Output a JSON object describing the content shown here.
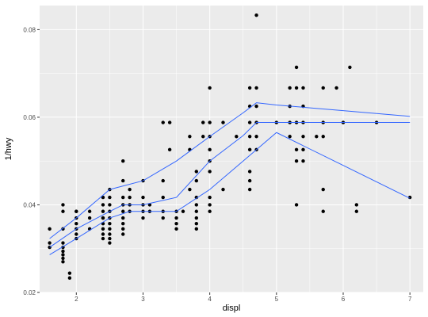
{
  "chart_data": {
    "type": "scatter",
    "title": "",
    "xlabel": "displ",
    "ylabel": "1/hwy",
    "xlim": [
      1.45,
      7.2
    ],
    "ylim": [
      0.02,
      0.0855
    ],
    "x_ticks": [
      2,
      3,
      4,
      5,
      6,
      7
    ],
    "x_tick_labels": [
      "2",
      "3",
      "4",
      "5",
      "6",
      "7"
    ],
    "y_ticks": [
      0.02,
      0.04,
      0.06,
      0.08
    ],
    "y_tick_labels": [
      "0.02",
      "0.04",
      "0.06",
      "0.08"
    ],
    "grid": true,
    "colors": {
      "panel": "#ebebeb",
      "grid": "#ffffff",
      "points": "#000000",
      "lines": "#3366ff"
    },
    "points": [
      [
        1.6,
        0.0345
      ],
      [
        1.6,
        0.0313
      ],
      [
        1.6,
        0.0303
      ],
      [
        1.8,
        0.0345
      ],
      [
        1.8,
        0.0313
      ],
      [
        1.8,
        0.0303
      ],
      [
        1.8,
        0.0294
      ],
      [
        1.8,
        0.0286
      ],
      [
        1.8,
        0.0278
      ],
      [
        1.8,
        0.027
      ],
      [
        1.8,
        0.0385
      ],
      [
        1.8,
        0.04
      ],
      [
        1.9,
        0.0244
      ],
      [
        1.9,
        0.0233
      ],
      [
        2.0,
        0.0385
      ],
      [
        2.0,
        0.037
      ],
      [
        2.0,
        0.0357
      ],
      [
        2.0,
        0.0345
      ],
      [
        2.0,
        0.0333
      ],
      [
        2.0,
        0.0323
      ],
      [
        2.0,
        0.0385
      ],
      [
        2.2,
        0.0385
      ],
      [
        2.2,
        0.037
      ],
      [
        2.2,
        0.0345
      ],
      [
        2.4,
        0.0417
      ],
      [
        2.4,
        0.0385
      ],
      [
        2.4,
        0.037
      ],
      [
        2.4,
        0.0357
      ],
      [
        2.4,
        0.0345
      ],
      [
        2.4,
        0.0333
      ],
      [
        2.4,
        0.0323
      ],
      [
        2.4,
        0.037
      ],
      [
        2.4,
        0.04
      ],
      [
        2.5,
        0.0435
      ],
      [
        2.5,
        0.0417
      ],
      [
        2.5,
        0.04
      ],
      [
        2.5,
        0.0385
      ],
      [
        2.5,
        0.037
      ],
      [
        2.5,
        0.0357
      ],
      [
        2.5,
        0.0345
      ],
      [
        2.5,
        0.0333
      ],
      [
        2.5,
        0.0323
      ],
      [
        2.5,
        0.0313
      ],
      [
        2.7,
        0.05
      ],
      [
        2.7,
        0.0455
      ],
      [
        2.7,
        0.0417
      ],
      [
        2.7,
        0.04
      ],
      [
        2.7,
        0.0385
      ],
      [
        2.7,
        0.037
      ],
      [
        2.7,
        0.0357
      ],
      [
        2.7,
        0.0345
      ],
      [
        2.7,
        0.0333
      ],
      [
        2.8,
        0.0417
      ],
      [
        2.8,
        0.04
      ],
      [
        2.8,
        0.0385
      ],
      [
        2.8,
        0.0435
      ],
      [
        3.0,
        0.0455
      ],
      [
        3.0,
        0.0417
      ],
      [
        3.0,
        0.04
      ],
      [
        3.0,
        0.0385
      ],
      [
        3.0,
        0.037
      ],
      [
        3.1,
        0.0385
      ],
      [
        3.1,
        0.04
      ],
      [
        3.3,
        0.0588
      ],
      [
        3.3,
        0.0455
      ],
      [
        3.3,
        0.0417
      ],
      [
        3.3,
        0.0385
      ],
      [
        3.3,
        0.037
      ],
      [
        3.4,
        0.0588
      ],
      [
        3.4,
        0.0526
      ],
      [
        3.5,
        0.0385
      ],
      [
        3.5,
        0.037
      ],
      [
        3.5,
        0.0357
      ],
      [
        3.5,
        0.0345
      ],
      [
        3.6,
        0.0385
      ],
      [
        3.7,
        0.0556
      ],
      [
        3.7,
        0.0526
      ],
      [
        3.7,
        0.0435
      ],
      [
        3.8,
        0.0476
      ],
      [
        3.8,
        0.0455
      ],
      [
        3.8,
        0.0417
      ],
      [
        3.8,
        0.04
      ],
      [
        3.8,
        0.0385
      ],
      [
        3.8,
        0.037
      ],
      [
        3.8,
        0.0357
      ],
      [
        3.8,
        0.0345
      ],
      [
        3.9,
        0.0588
      ],
      [
        3.9,
        0.0556
      ],
      [
        4.0,
        0.0667
      ],
      [
        4.0,
        0.0588
      ],
      [
        4.0,
        0.0556
      ],
      [
        4.0,
        0.0526
      ],
      [
        4.0,
        0.05
      ],
      [
        4.0,
        0.0476
      ],
      [
        4.0,
        0.0417
      ],
      [
        4.0,
        0.04
      ],
      [
        4.0,
        0.0385
      ],
      [
        4.2,
        0.0588
      ],
      [
        4.2,
        0.0435
      ],
      [
        4.4,
        0.0556
      ],
      [
        4.6,
        0.0667
      ],
      [
        4.6,
        0.0625
      ],
      [
        4.6,
        0.0588
      ],
      [
        4.6,
        0.0556
      ],
      [
        4.6,
        0.0526
      ],
      [
        4.6,
        0.0476
      ],
      [
        4.6,
        0.0455
      ],
      [
        4.6,
        0.0435
      ],
      [
        4.7,
        0.0833
      ],
      [
        4.7,
        0.0667
      ],
      [
        4.7,
        0.0625
      ],
      [
        4.7,
        0.0588
      ],
      [
        4.7,
        0.0556
      ],
      [
        4.7,
        0.0526
      ],
      [
        5.0,
        0.0588
      ],
      [
        5.2,
        0.0667
      ],
      [
        5.2,
        0.0625
      ],
      [
        5.2,
        0.0588
      ],
      [
        5.2,
        0.0556
      ],
      [
        5.3,
        0.0714
      ],
      [
        5.3,
        0.0667
      ],
      [
        5.3,
        0.0588
      ],
      [
        5.3,
        0.0526
      ],
      [
        5.3,
        0.05
      ],
      [
        5.3,
        0.04
      ],
      [
        5.4,
        0.0667
      ],
      [
        5.4,
        0.0625
      ],
      [
        5.4,
        0.0588
      ],
      [
        5.4,
        0.0556
      ],
      [
        5.4,
        0.0526
      ],
      [
        5.4,
        0.05
      ],
      [
        5.6,
        0.0556
      ],
      [
        5.7,
        0.0667
      ],
      [
        5.7,
        0.0588
      ],
      [
        5.7,
        0.0556
      ],
      [
        5.7,
        0.0435
      ],
      [
        5.7,
        0.0385
      ],
      [
        5.9,
        0.0667
      ],
      [
        6.0,
        0.0588
      ],
      [
        6.1,
        0.0714
      ],
      [
        6.2,
        0.04
      ],
      [
        6.2,
        0.0385
      ],
      [
        6.5,
        0.0588
      ],
      [
        7.0,
        0.0417
      ]
    ],
    "series": [
      {
        "values": [
          [
            1.6,
            0.0323
          ],
          [
            2.0,
            0.037
          ],
          [
            2.5,
            0.0435
          ],
          [
            3.0,
            0.0455
          ],
          [
            3.5,
            0.05
          ],
          [
            4.0,
            0.0556
          ],
          [
            4.5,
            0.061
          ],
          [
            4.7,
            0.0633
          ],
          [
            5.0,
            0.0628
          ],
          [
            6.0,
            0.0615
          ],
          [
            7.0,
            0.0602
          ]
        ]
      },
      {
        "values": [
          [
            1.6,
            0.0303
          ],
          [
            2.0,
            0.0345
          ],
          [
            2.5,
            0.0385
          ],
          [
            2.7,
            0.04
          ],
          [
            3.0,
            0.04
          ],
          [
            3.5,
            0.0417
          ],
          [
            4.0,
            0.05
          ],
          [
            4.5,
            0.0558
          ],
          [
            4.7,
            0.0588
          ],
          [
            7.0,
            0.0588
          ]
        ]
      },
      {
        "values": [
          [
            1.6,
            0.0286
          ],
          [
            2.0,
            0.0323
          ],
          [
            2.5,
            0.037
          ],
          [
            2.8,
            0.0385
          ],
          [
            3.5,
            0.0385
          ],
          [
            4.0,
            0.0435
          ],
          [
            4.5,
            0.05
          ],
          [
            5.0,
            0.0565
          ],
          [
            6.0,
            0.049
          ],
          [
            7.0,
            0.0415
          ]
        ]
      }
    ]
  }
}
